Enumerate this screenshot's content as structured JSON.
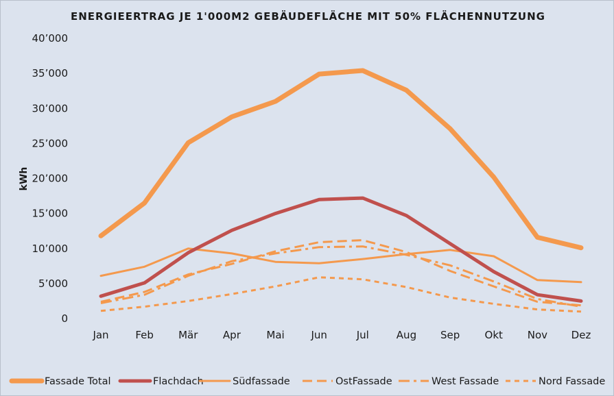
{
  "chart_data": {
    "type": "line",
    "title": "ENERGIEERTRAG JE 1'000M2 GEBÄUDEFLÄCHE MIT 50% FLÄCHENNUTZUNG",
    "xlabel": "",
    "ylabel": "kWh",
    "ylim": [
      0,
      40000
    ],
    "yticks": [
      0,
      5000,
      10000,
      15000,
      20000,
      25000,
      30000,
      35000,
      40000
    ],
    "ytick_labels": [
      "0",
      "5’000",
      "10’000",
      "15’000",
      "20’000",
      "25’000",
      "30’000",
      "35’000",
      "40’000"
    ],
    "categories": [
      "Jan",
      "Feb",
      "Mär",
      "Apr",
      "Mai",
      "Jun",
      "Jul",
      "Aug",
      "Sep",
      "Okt",
      "Nov",
      "Dez"
    ],
    "grid": false,
    "legend_position": "bottom",
    "series": [
      {
        "name": "Fassade Total",
        "color": "#f4994d",
        "style": "solid",
        "weight": "heavy",
        "values": [
          11800,
          16500,
          25100,
          28800,
          31000,
          34900,
          35400,
          32600,
          27100,
          20200,
          11600,
          10100
        ]
      },
      {
        "name": "Flachdach",
        "color": "#c0504d",
        "style": "solid",
        "weight": "medium",
        "values": [
          3200,
          5100,
          9400,
          12600,
          15000,
          17000,
          17200,
          14700,
          10700,
          6700,
          3400,
          2500
        ]
      },
      {
        "name": "Südfassade",
        "color": "#f4994d",
        "style": "solid",
        "weight": "thin",
        "values": [
          6100,
          7400,
          10000,
          9300,
          8100,
          7900,
          8500,
          9200,
          9800,
          8900,
          5500,
          5200
        ]
      },
      {
        "name": "OstFassade",
        "color": "#f4994d",
        "style": "dash",
        "weight": "thin",
        "values": [
          2400,
          3800,
          6300,
          7800,
          9600,
          10900,
          11200,
          9500,
          6800,
          4600,
          2400,
          1900
        ]
      },
      {
        "name": "West Fassade",
        "color": "#f4994d",
        "style": "dashdot",
        "weight": "thin",
        "values": [
          2200,
          3400,
          6100,
          8200,
          9300,
          10200,
          10300,
          9100,
          7600,
          5300,
          2800,
          1700
        ]
      },
      {
        "name": "Nord Fassade",
        "color": "#f4994d",
        "style": "shortdash",
        "weight": "thin",
        "values": [
          1100,
          1700,
          2500,
          3500,
          4600,
          5900,
          5600,
          4500,
          3000,
          2100,
          1300,
          1000
        ]
      }
    ]
  }
}
